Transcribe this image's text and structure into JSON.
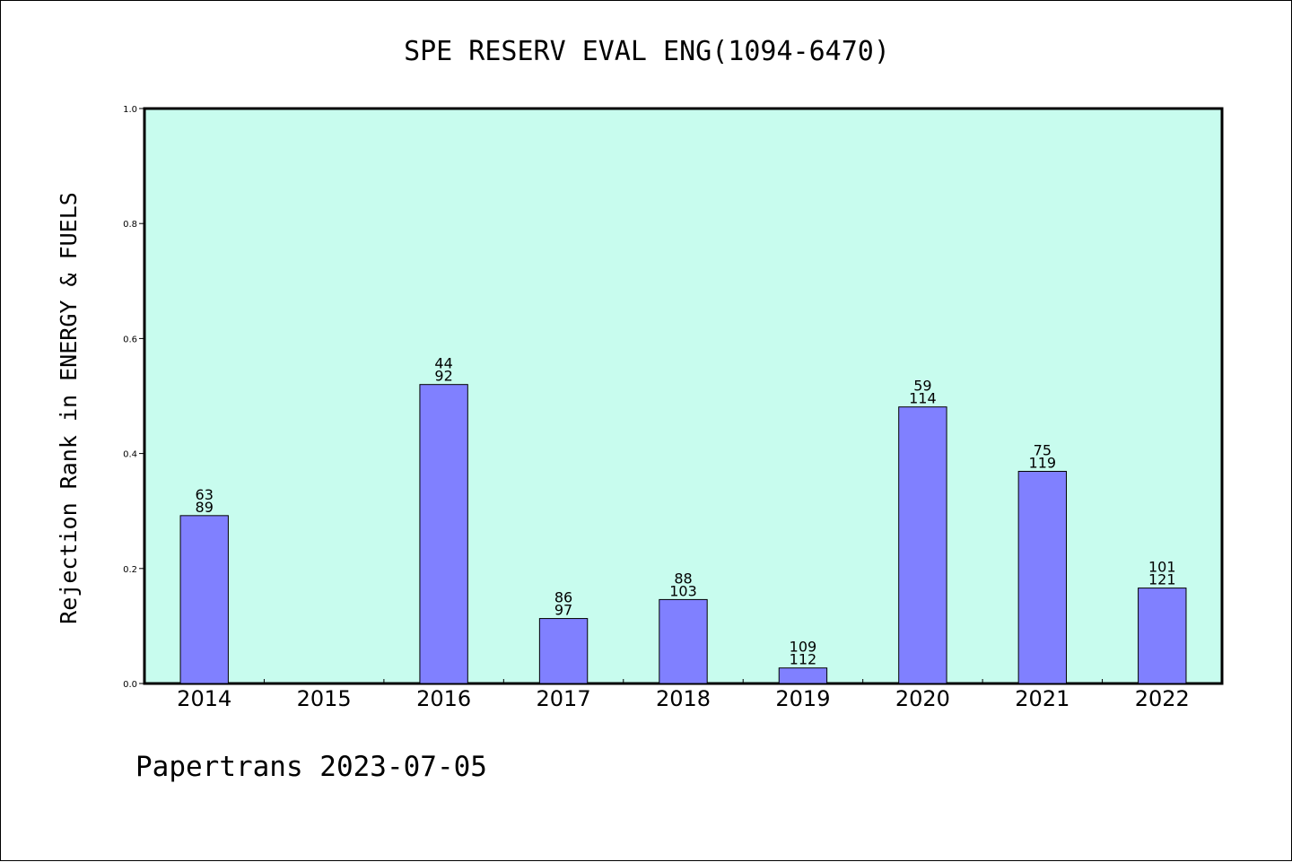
{
  "chart_data": {
    "type": "bar",
    "title": "SPE RESERV EVAL ENG(1094-6470)",
    "xlabel": "",
    "ylabel": "Rejection Rank in ENERGY & FUELS",
    "ylim": [
      0,
      1.0
    ],
    "yticks": [
      "0.0",
      "0.2",
      "0.4",
      "0.6",
      "0.8",
      "1.0"
    ],
    "categories": [
      "2014",
      "2015",
      "2016",
      "2017",
      "2018",
      "2019",
      "2020",
      "2021",
      "2022"
    ],
    "values": [
      0.292,
      null,
      0.52,
      0.113,
      0.146,
      0.027,
      0.481,
      0.369,
      0.166
    ],
    "label_top": [
      "63",
      "",
      "44",
      "86",
      "88",
      "109",
      "59",
      "75",
      "101"
    ],
    "label_bottom": [
      "89",
      "",
      "92",
      "97",
      "103",
      "112",
      "114",
      "119",
      "121"
    ],
    "grid": false,
    "legend": "none"
  },
  "footer": "Papertrans 2023-07-05",
  "colors": {
    "plot_background": "#c8fcee",
    "bar_fill": "#8080ff",
    "bar_stroke": "#000000",
    "axis": "#000000"
  }
}
